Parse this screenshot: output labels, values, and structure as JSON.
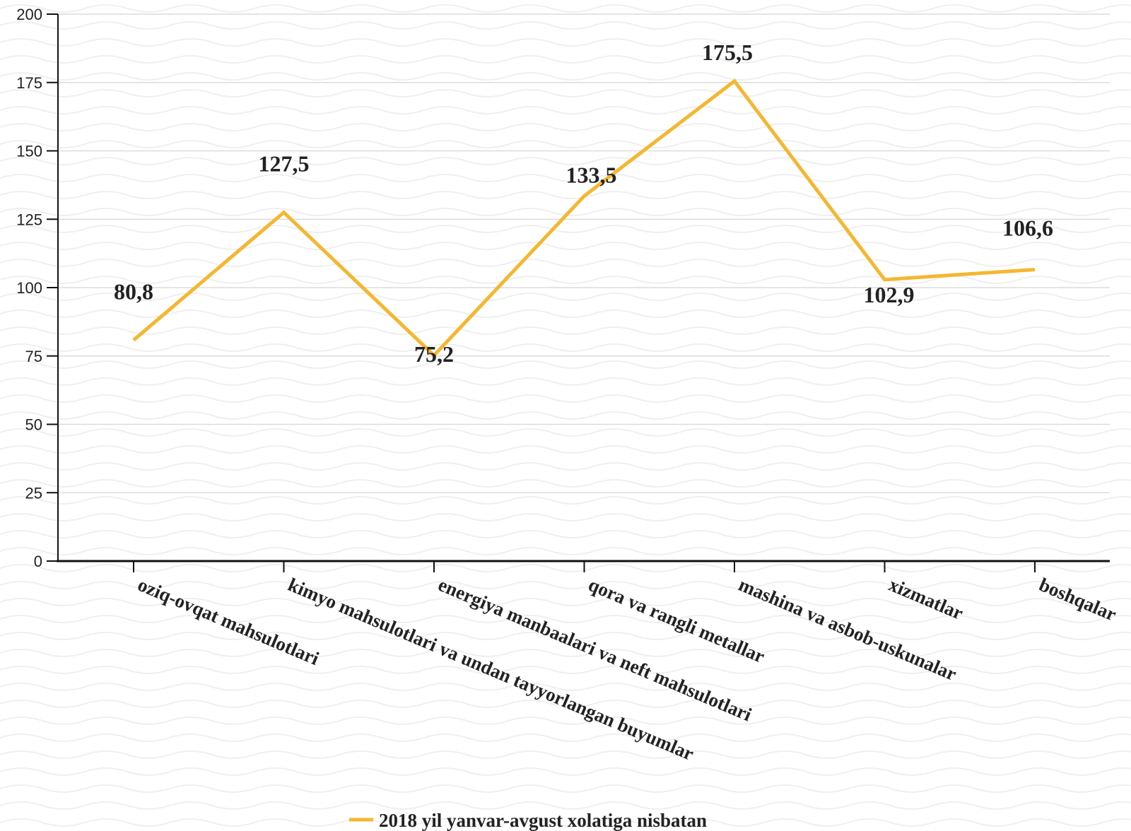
{
  "chart_data": {
    "type": "line",
    "categories": [
      "oziq-ovqat mahsulotlari",
      "kimyo mahsulotlari va undan tayyorlangan buyumlar",
      "energiya manbaalari va neft mahsulotlari",
      "qora va rangli metallar",
      "mashina va asbob-uskunalar",
      "xizmatlar",
      "boshqalar"
    ],
    "series": [
      {
        "name": "2018 yil yanvar-avgust xolatiga nisbatan",
        "values": [
          80.8,
          127.5,
          75.2,
          133.5,
          175.5,
          102.9,
          106.6
        ],
        "labels": [
          "80,8",
          "127,5",
          "75,2",
          "133,5",
          "175,5",
          "102,9",
          "106,6"
        ],
        "color": "#F4B731"
      }
    ],
    "ylim": [
      0,
      200
    ],
    "yticks": [
      0,
      25,
      50,
      75,
      100,
      125,
      150,
      175,
      200
    ],
    "grid": true,
    "legend_position": "bottom"
  },
  "colors": {
    "line": "#F4B731",
    "axis": "#111111",
    "grid": "#dcdcdc",
    "background_pattern": "#efefef"
  }
}
